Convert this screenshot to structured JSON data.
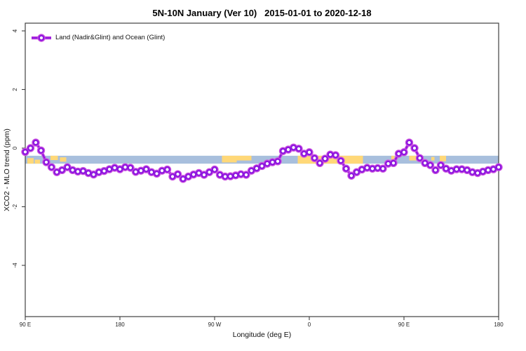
{
  "chart_data": {
    "type": "line",
    "title": "5N-10N January (Ver 10)   2015-01-01 to 2020-12-18",
    "xlabel": "Longitude (deg E)",
    "ylabel": "XCO2 - MLO trend (ppm)",
    "legend_label": "Land (Nadir&Glint) and Ocean (Glint)",
    "legend_position": "top-left",
    "grid": false,
    "xlim": [
      90,
      540
    ],
    "ylim": [
      -5.75,
      4.26
    ],
    "x_ticks": [
      {
        "pos": 90,
        "label": "90 E"
      },
      {
        "pos": 180,
        "label": "180"
      },
      {
        "pos": 270,
        "label": "90 W"
      },
      {
        "pos": 360,
        "label": "0"
      },
      {
        "pos": 450,
        "label": "90 E"
      },
      {
        "pos": 540,
        "label": "180"
      }
    ],
    "y_ticks": [
      {
        "pos": 4,
        "label": "4"
      },
      {
        "pos": 2,
        "label": "2"
      },
      {
        "pos": 0,
        "label": "0"
      },
      {
        "pos": -2,
        "label": "-2"
      },
      {
        "pos": -4,
        "label": "-4"
      }
    ],
    "map_band": {
      "description": "latitude-strip world map 5N-10N drawn across plot: blue=ocean, orange=land",
      "top_val": -0.26,
      "bottom_val": -0.53,
      "land_segments": [
        {
          "from": 92,
          "to": 98,
          "top": 0.3,
          "bottom": 1.0
        },
        {
          "from": 99,
          "to": 104,
          "top": 0.5,
          "bottom": 1.0
        },
        {
          "from": 114,
          "to": 121,
          "top": 0.0,
          "bottom": 0.55
        },
        {
          "from": 123,
          "to": 129,
          "top": 0.2,
          "bottom": 0.75
        },
        {
          "from": 277,
          "to": 291,
          "top": 0.0,
          "bottom": 0.85
        },
        {
          "from": 291,
          "to": 305,
          "top": 0.0,
          "bottom": 0.6
        },
        {
          "from": 349,
          "to": 411,
          "top": 0.0,
          "bottom": 1.0
        },
        {
          "from": 438,
          "to": 441,
          "top": 0.0,
          "bottom": 0.5
        },
        {
          "from": 455,
          "to": 464,
          "top": 0.0,
          "bottom": 0.6
        },
        {
          "from": 476,
          "to": 479,
          "top": 0.15,
          "bottom": 0.6
        },
        {
          "from": 484,
          "to": 490,
          "top": 0.0,
          "bottom": 0.7
        }
      ]
    },
    "series": [
      {
        "name": "Land (Nadir&Glint) and Ocean (Glint)",
        "marker": "open-circle",
        "x": [
          90,
          95,
          100,
          105,
          110,
          115,
          120,
          125,
          130,
          135,
          140,
          145,
          150,
          155,
          160,
          165,
          170,
          175,
          180,
          185,
          190,
          195,
          200,
          205,
          210,
          215,
          220,
          225,
          230,
          235,
          240,
          245,
          250,
          255,
          260,
          265,
          270,
          275,
          280,
          285,
          290,
          295,
          300,
          305,
          310,
          315,
          320,
          325,
          330,
          335,
          340,
          345,
          350,
          355,
          360,
          365,
          370,
          375,
          380,
          385,
          390,
          395,
          400,
          405,
          410,
          415,
          420,
          425,
          430,
          435,
          440,
          445,
          450,
          455,
          460,
          465,
          470,
          475,
          480,
          485,
          490,
          495,
          500,
          505,
          510,
          515,
          520,
          525,
          530,
          535,
          540
        ],
        "y": [
          -0.13,
          0.0,
          0.19,
          -0.08,
          -0.48,
          -0.65,
          -0.82,
          -0.75,
          -0.65,
          -0.75,
          -0.8,
          -0.78,
          -0.85,
          -0.9,
          -0.82,
          -0.78,
          -0.72,
          -0.67,
          -0.72,
          -0.65,
          -0.67,
          -0.81,
          -0.77,
          -0.72,
          -0.82,
          -0.87,
          -0.77,
          -0.73,
          -0.97,
          -0.89,
          -1.05,
          -0.97,
          -0.9,
          -0.85,
          -0.91,
          -0.82,
          -0.73,
          -0.91,
          -0.97,
          -0.96,
          -0.93,
          -0.89,
          -0.91,
          -0.77,
          -0.69,
          -0.61,
          -0.53,
          -0.48,
          -0.45,
          -0.1,
          -0.05,
          0.02,
          -0.02,
          -0.19,
          -0.14,
          -0.34,
          -0.51,
          -0.36,
          -0.22,
          -0.24,
          -0.43,
          -0.7,
          -0.94,
          -0.82,
          -0.73,
          -0.67,
          -0.7,
          -0.68,
          -0.7,
          -0.53,
          -0.51,
          -0.19,
          -0.14,
          0.19,
          0.0,
          -0.34,
          -0.51,
          -0.58,
          -0.75,
          -0.58,
          -0.7,
          -0.77,
          -0.72,
          -0.72,
          -0.75,
          -0.82,
          -0.85,
          -0.8,
          -0.75,
          -0.72,
          -0.65
        ]
      }
    ],
    "colors": {
      "line": "#8F17DF",
      "line_halo": "#CC55E0",
      "ocean_band": "#A8BFDD",
      "land": "#FFD878",
      "frame": "#3F3F3F",
      "tick_label": "#222222"
    }
  }
}
